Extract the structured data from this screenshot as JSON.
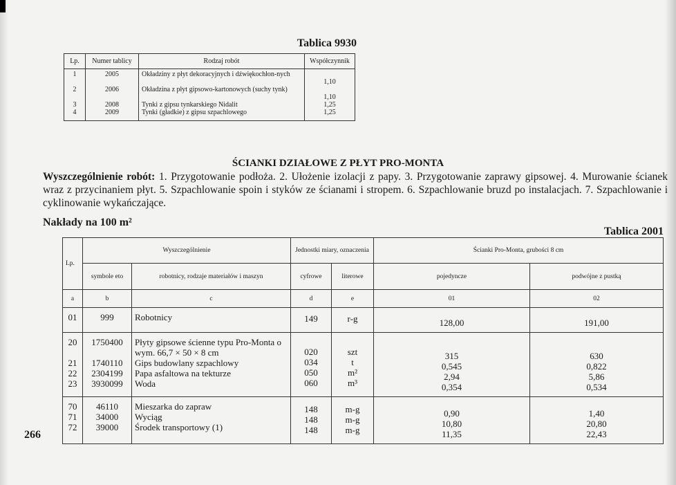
{
  "top_table": {
    "title": "Tablica 9930",
    "headers": [
      "Lp.",
      "Numer tablicy",
      "Rodzaj robót",
      "Współczynnik"
    ],
    "rows": [
      {
        "lp": "1",
        "nr": "2005",
        "desc": "Okładziny z płyt dekoracyjnych i dźwiękochłon-nych",
        "coef": "1,10"
      },
      {
        "lp": "2",
        "nr": "2006",
        "desc": "Okładzina z płyt gipsowo-kartonowych (suchy tynk)",
        "coef": "1,10"
      },
      {
        "lp": "3",
        "nr": "2008",
        "desc": "Tynki z gipsu tynkarskiego Nidalit",
        "coef": "1,25"
      },
      {
        "lp": "4",
        "nr": "2009",
        "desc": "Tynki (gładkie) z gipsu szpachlowego",
        "coef": "1,25"
      }
    ]
  },
  "heading": "ŚCIANKI DZIAŁOWE Z PŁYT PRO-MONTA",
  "spec_label": "Wyszczególnienie robót:",
  "spec_text": " 1. Przygotowanie podłoża. 2. Ułożenie izolacji z papy. 3. Przygotowanie zaprawy gipsowej. 4. Murowanie ścianek wraz z przycinaniem płyt. 5. Szpachlowanie spoin i styków ze ścianami i stropem. 6. Szpachlowanie bruzd po instalacjach. 7. Szpachlowanie i cyklinowanie wykańczające.",
  "outlay": "Nakłady na 100 m²",
  "main_table": {
    "title": "Tablica 2001",
    "h": {
      "lp": "Lp.",
      "wysz": "Wyszczególnienie",
      "jedn": "Jednostki miary, oznaczenia",
      "scianki": "Ścianki Pro-Monta, grubości 8 cm",
      "symb": "symbole eto",
      "rob": "robotnicy, rodzaje materiałów i maszyn",
      "cyf": "cyfrowe",
      "lit": "literowe",
      "poj": "pojedyncze",
      "podw": "podwójne z pustką"
    },
    "letters": [
      "a",
      "b",
      "c",
      "d",
      "e",
      "01",
      "02"
    ],
    "groups": [
      [
        [
          "01",
          "999",
          "Robotnicy",
          "149",
          "r-g",
          "128,00",
          "191,00"
        ]
      ],
      [
        [
          "20",
          "1750400",
          "Płyty gipsowe ścienne typu Pro-Monta o wym. 66,7 × 50 × 8 cm",
          "020",
          "szt",
          "315",
          "630"
        ],
        [
          "21",
          "1740110",
          "Gips budowlany szpachlowy",
          "034",
          "t",
          "0,545",
          "0,822"
        ],
        [
          "22",
          "2304199",
          "Papa asfaltowa na tekturze",
          "050",
          "m²",
          "2,94",
          "5,86"
        ],
        [
          "23",
          "3930099",
          "Woda",
          "060",
          "m³",
          "0,354",
          "0,534"
        ]
      ],
      [
        [
          "70",
          "46110",
          "Mieszarka do zapraw",
          "148",
          "m-g",
          "0,90",
          "1,40"
        ],
        [
          "71",
          "34000",
          "Wyciąg",
          "148",
          "m-g",
          "10,80",
          "20,80"
        ],
        [
          "72",
          "39000",
          "Środek transportowy (1)",
          "148",
          "m-g",
          "11,35",
          "22,43"
        ]
      ]
    ]
  },
  "page_number": "266"
}
